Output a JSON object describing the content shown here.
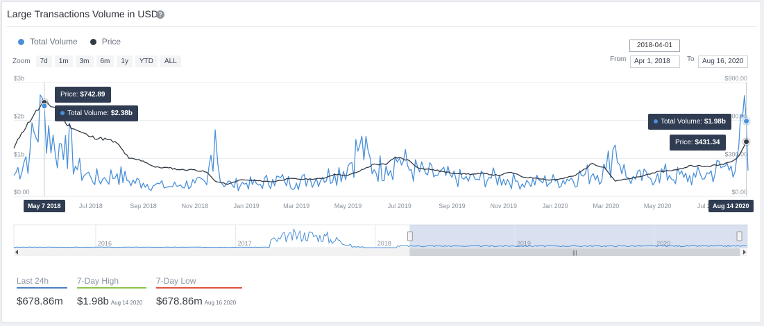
{
  "title": "Large Transactions Volume in USD",
  "help_icon": "question-circle-icon",
  "legend": [
    {
      "name": "Total Volume",
      "color": "#4a90d9"
    },
    {
      "name": "Price",
      "color": "#333a44"
    }
  ],
  "zoom": {
    "label": "Zoom",
    "buttons": [
      "7d",
      "1m",
      "3m",
      "6m",
      "1y",
      "YTD",
      "ALL"
    ]
  },
  "range": {
    "hint_date": "2018-04-01",
    "from_label": "From",
    "from_value": "Apr 1, 2018",
    "to_label": "To",
    "to_value": "Aug 16, 2020"
  },
  "tooltips": {
    "left_price": {
      "label": "Price: ",
      "value": "$742.89"
    },
    "left_volume": {
      "label": "Total Volume: ",
      "value": "$2.38b"
    },
    "right_volume": {
      "label": "Total Volume: ",
      "value": "$1.98b"
    },
    "right_price": {
      "label": "Price: ",
      "value": "$431.34"
    },
    "left_date": "May 7 2018",
    "right_date": "Aug 14 2020"
  },
  "stats": [
    {
      "label": "Last 24h",
      "value": "$678.86m",
      "date": "",
      "color": "#4a7fc1"
    },
    {
      "label": "7-Day High",
      "value": "$1.98b",
      "date": "Aug 14 2020",
      "color": "#8bc34a"
    },
    {
      "label": "7-Day Low",
      "value": "$678.86m",
      "date": "Aug 16 2020",
      "color": "#e0533d"
    }
  ],
  "chart_data": {
    "type": "line",
    "x_range": [
      "2018-04-01",
      "2020-08-16"
    ],
    "x_ticks": [
      "Jul 2018",
      "Sep 2018",
      "Nov 2018",
      "Jan 2019",
      "Mar 2019",
      "May 2019",
      "Jul 2019",
      "Sep 2019",
      "Nov 2019",
      "Jan 2020",
      "Mar 2020",
      "May 2020",
      "Jul 2020"
    ],
    "y_left": {
      "ticks": [
        "$0.00",
        "$1b",
        "$2b",
        "$3b"
      ],
      "range": [
        0,
        3
      ]
    },
    "y_right": {
      "ticks": [
        "$0.00",
        "$300.00",
        "$600.00",
        "$900.00"
      ],
      "range": [
        0,
        900
      ]
    },
    "series": [
      {
        "name": "Total Volume",
        "axis": "left",
        "unit": "billion USD",
        "x": [
          "2018-04-01",
          "2018-04-20",
          "2018-05-07",
          "2018-05-20",
          "2018-06-01",
          "2018-06-15",
          "2018-07-01",
          "2018-07-15",
          "2018-08-01",
          "2018-08-15",
          "2018-09-01",
          "2018-09-15",
          "2018-10-01",
          "2018-10-15",
          "2018-11-01",
          "2018-11-15",
          "2018-11-25",
          "2018-12-01",
          "2018-12-15",
          "2019-01-01",
          "2019-01-15",
          "2019-02-01",
          "2019-02-15",
          "2019-03-01",
          "2019-03-15",
          "2019-04-01",
          "2019-04-15",
          "2019-05-01",
          "2019-05-15",
          "2019-06-01",
          "2019-06-15",
          "2019-07-01",
          "2019-07-15",
          "2019-08-01",
          "2019-08-15",
          "2019-09-01",
          "2019-09-15",
          "2019-10-01",
          "2019-10-15",
          "2019-11-01",
          "2019-11-15",
          "2019-12-01",
          "2019-12-15",
          "2020-01-01",
          "2020-01-15",
          "2020-02-01",
          "2020-02-15",
          "2020-03-01",
          "2020-03-12",
          "2020-03-25",
          "2020-04-05",
          "2020-04-20",
          "2020-05-01",
          "2020-05-15",
          "2020-06-01",
          "2020-06-15",
          "2020-07-01",
          "2020-07-15",
          "2020-07-27",
          "2020-08-05",
          "2020-08-14",
          "2020-08-16"
        ],
        "values": [
          0.55,
          1.2,
          2.38,
          1.1,
          1.6,
          0.7,
          0.5,
          0.45,
          0.6,
          0.4,
          0.35,
          0.3,
          0.25,
          0.3,
          0.35,
          0.3,
          1.75,
          0.4,
          0.3,
          0.35,
          0.3,
          0.45,
          0.4,
          0.35,
          0.45,
          0.5,
          0.6,
          0.8,
          1.35,
          0.7,
          0.8,
          1.0,
          0.7,
          0.6,
          0.55,
          0.5,
          0.45,
          0.45,
          0.5,
          0.45,
          0.4,
          0.35,
          0.4,
          0.4,
          0.45,
          0.55,
          0.6,
          0.7,
          1.35,
          0.5,
          0.45,
          0.5,
          0.6,
          0.55,
          0.5,
          0.5,
          0.6,
          0.75,
          0.8,
          1.3,
          1.98,
          0.68
        ]
      },
      {
        "name": "Price",
        "axis": "right",
        "unit": "USD",
        "x": [
          "2018-04-01",
          "2018-04-10",
          "2018-04-25",
          "2018-05-07",
          "2018-05-20",
          "2018-06-01",
          "2018-06-15",
          "2018-07-01",
          "2018-07-20",
          "2018-08-01",
          "2018-08-15",
          "2018-09-01",
          "2018-09-15",
          "2018-10-01",
          "2018-10-15",
          "2018-11-01",
          "2018-11-15",
          "2018-11-25",
          "2018-12-10",
          "2018-12-25",
          "2019-01-10",
          "2019-02-01",
          "2019-02-20",
          "2019-03-10",
          "2019-04-01",
          "2019-04-15",
          "2019-05-01",
          "2019-05-15",
          "2019-06-01",
          "2019-06-15",
          "2019-06-26",
          "2019-07-10",
          "2019-07-25",
          "2019-08-10",
          "2019-08-25",
          "2019-09-10",
          "2019-09-25",
          "2019-10-10",
          "2019-10-25",
          "2019-11-10",
          "2019-11-25",
          "2019-12-10",
          "2019-12-25",
          "2020-01-10",
          "2020-01-25",
          "2020-02-14",
          "2020-02-28",
          "2020-03-12",
          "2020-03-25",
          "2020-04-10",
          "2020-04-25",
          "2020-05-10",
          "2020-05-25",
          "2020-06-10",
          "2020-06-25",
          "2020-07-10",
          "2020-07-25",
          "2020-08-05",
          "2020-08-14",
          "2020-08-16"
        ],
        "values": [
          380,
          500,
          650,
          742.89,
          700,
          580,
          520,
          470,
          450,
          420,
          300,
          280,
          230,
          225,
          210,
          210,
          190,
          120,
          95,
          130,
          125,
          115,
          140,
          135,
          140,
          175,
          165,
          200,
          255,
          250,
          310,
          290,
          220,
          210,
          190,
          180,
          175,
          180,
          165,
          190,
          150,
          145,
          128,
          140,
          165,
          260,
          230,
          120,
          135,
          155,
          185,
          200,
          210,
          245,
          235,
          245,
          270,
          320,
          431.34,
          430
        ]
      }
    ]
  },
  "navigator": {
    "year_labels": [
      "2016",
      "2017",
      "2018",
      "2019",
      "2020"
    ],
    "scroll_grip": "|||"
  }
}
